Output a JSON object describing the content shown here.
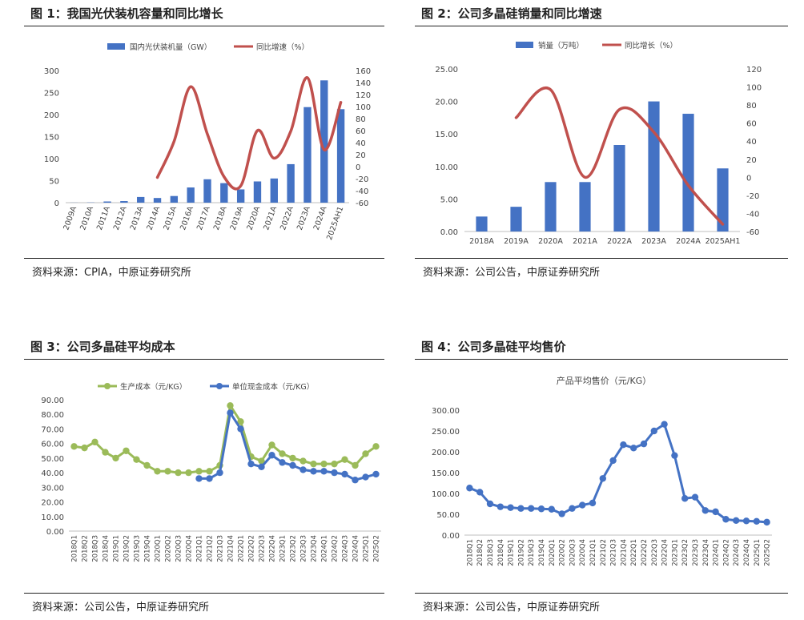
{
  "panels": [
    {
      "title": "图 1：我国光伏装机容量和同比增长",
      "source": "资料来源：CPIA，中原证券研究所"
    },
    {
      "title": "图 2：公司多晶硅销量和同比增速",
      "source": "资料来源：公司公告，中原证券研究所"
    },
    {
      "title": "图 3：公司多晶硅平均成本",
      "source": "资料来源：公司公告，中原证券研究所"
    },
    {
      "title": "图 4：公司多晶硅平均售价",
      "source": "资料来源：公司公告，中原证券研究所"
    }
  ],
  "colors": {
    "bar": "#4472C4",
    "red_line": "#C0504D",
    "green": "#9BBB59",
    "blue_line": "#4472C4"
  },
  "chart_data": [
    {
      "type": "bar",
      "categories": [
        "2009A",
        "2010A",
        "2011A",
        "2012A",
        "2013A",
        "2014A",
        "2015A",
        "2016A",
        "2017A",
        "2018A",
        "2019A",
        "2020A",
        "2021A",
        "2022A",
        "2023A",
        "2024A",
        "2025AH1"
      ],
      "series": [
        {
          "name": "国内光伏装机量（GW）",
          "type": "bar",
          "axis": "left",
          "values": [
            0.2,
            0.5,
            2.7,
            3.6,
            12.9,
            10.6,
            15.1,
            34.5,
            53.1,
            44.3,
            30.1,
            48.2,
            54.9,
            87.4,
            216.9,
            277.6,
            212.2
          ]
        },
        {
          "name": "同比增速（%）",
          "type": "line",
          "axis": "right",
          "values": [
            null,
            null,
            null,
            null,
            null,
            -18,
            42,
            133,
            54,
            -17,
            -32,
            60,
            14,
            59,
            148,
            28,
            107
          ]
        }
      ],
      "y_left": {
        "min": 0,
        "max": 300,
        "ticks": [
          "0",
          "50",
          "100",
          "150",
          "200",
          "250",
          "300"
        ]
      },
      "y_right": {
        "min": -60,
        "max": 160,
        "ticks": [
          "-60",
          "-40",
          "-20",
          "0",
          "20",
          "40",
          "60",
          "80",
          "100",
          "120",
          "140",
          "160"
        ]
      },
      "legend_position": "top"
    },
    {
      "type": "bar",
      "categories": [
        "2018A",
        "2019A",
        "2020A",
        "2021A",
        "2022A",
        "2023A",
        "2024A",
        "2025AH1"
      ],
      "series": [
        {
          "name": "销量（万吨）",
          "type": "bar",
          "axis": "left",
          "values": [
            2.3,
            3.8,
            7.6,
            7.6,
            13.3,
            20.0,
            18.1,
            9.7
          ]
        },
        {
          "name": "同比增长（%）",
          "type": "line",
          "axis": "right",
          "values": [
            null,
            66,
            97,
            0,
            75,
            50,
            -9,
            -52
          ]
        }
      ],
      "y_left": {
        "min": 0,
        "max": 25,
        "ticks": [
          "0.00",
          "5.00",
          "10.00",
          "15.00",
          "20.00",
          "25.00"
        ]
      },
      "y_right": {
        "min": -60,
        "max": 120,
        "ticks": [
          "-60",
          "-40",
          "-20",
          "0",
          "20",
          "40",
          "60",
          "80",
          "100",
          "120"
        ]
      },
      "legend_position": "top"
    },
    {
      "type": "line",
      "categories": [
        "2018Q1",
        "2018Q2",
        "2018Q3",
        "2018Q4",
        "2019Q1",
        "2019Q2",
        "2019Q3",
        "2019Q4",
        "2020Q1",
        "2020Q2",
        "2020Q3",
        "2020Q4",
        "2021Q1",
        "2021Q2",
        "2021Q3",
        "2021Q4",
        "2022Q1",
        "2022Q2",
        "2022Q3",
        "2022Q4",
        "2023Q1",
        "2023Q2",
        "2023Q3",
        "2023Q4",
        "2024Q1",
        "2024Q2",
        "2024Q3",
        "2024Q4",
        "2025Q1",
        "2025Q2"
      ],
      "series": [
        {
          "name": "生产成本（元/KG）",
          "values": [
            58,
            57,
            61,
            54,
            50,
            55,
            49,
            45,
            41,
            41,
            40,
            40,
            41,
            41,
            45,
            86,
            75,
            51,
            48,
            59,
            53,
            50,
            48,
            46,
            46,
            46,
            49,
            45,
            53,
            58
          ]
        },
        {
          "name": "单位现金成本（元/KG）",
          "values": [
            null,
            null,
            null,
            null,
            null,
            null,
            null,
            null,
            null,
            null,
            null,
            null,
            36,
            36,
            40,
            81,
            70,
            46,
            44,
            52,
            47,
            45,
            42,
            41,
            41,
            40,
            39,
            35,
            37,
            39
          ]
        }
      ],
      "y": {
        "min": 0,
        "max": 90,
        "ticks": [
          "0.00",
          "10.00",
          "20.00",
          "30.00",
          "40.00",
          "50.00",
          "60.00",
          "70.00",
          "80.00",
          "90.00"
        ]
      },
      "legend_position": "top"
    },
    {
      "type": "line",
      "title": "产品平均售价（元/KG）",
      "categories": [
        "2018Q1",
        "2018Q2",
        "2018Q3",
        "2018Q4",
        "2019Q1",
        "2019Q2",
        "2019Q3",
        "2019Q4",
        "2020Q1",
        "2020Q2",
        "2020Q3",
        "2020Q4",
        "2021Q1",
        "2021Q2",
        "2021Q3",
        "2021Q4",
        "2022Q1",
        "2022Q2",
        "2022Q3",
        "2022Q4",
        "2023Q1",
        "2023Q2",
        "2023Q3",
        "2023Q4",
        "2024Q1",
        "2024Q2",
        "2024Q3",
        "2024Q4",
        "2025Q1",
        "2025Q2"
      ],
      "series": [
        {
          "name": "产品平均售价（元/KG）",
          "values": [
            113,
            103,
            75,
            68,
            66,
            64,
            64,
            63,
            62,
            51,
            64,
            72,
            77,
            136,
            179,
            217,
            209,
            219,
            250,
            266,
            191,
            88,
            91,
            59,
            56,
            38,
            35,
            34,
            33,
            31
          ]
        }
      ],
      "y": {
        "min": 0,
        "max": 300,
        "ticks": [
          "0.00",
          "50.00",
          "100.00",
          "150.00",
          "200.00",
          "250.00",
          "300.00"
        ]
      }
    }
  ]
}
